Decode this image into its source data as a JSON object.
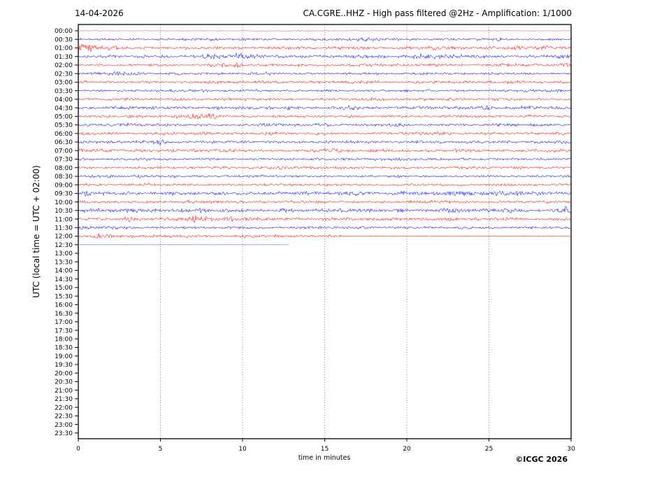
{
  "header": {
    "date": "14-04-2026",
    "title": "CA.CGRE..HHZ - High pass filtered @2Hz - Amplification: 1/1000"
  },
  "footer": {
    "copyright": "©ICGC 2026"
  },
  "colors": {
    "trace_red": "#ff0000",
    "trace_blue": "#0000ff",
    "trace_flat": "#9999ee",
    "grid": "#666666",
    "frame": "#000000"
  },
  "chart_data": {
    "type": "line",
    "subtype": "helicorder-seismogram",
    "date": "14-04-2026",
    "title": "CA.CGRE..HHZ - High pass filtered @2Hz - Amplification: 1/1000",
    "xlabel": "time in minutes",
    "ylabel": "UTC (local time = UTC + 02:00)",
    "xlim": [
      0,
      30
    ],
    "x_ticks": [
      0,
      5,
      10,
      15,
      20,
      25,
      30
    ],
    "grid": "vertical-dotted-at-5-min",
    "row_interval_minutes": 30,
    "minutes_per_row": 30,
    "recording_note": "traces recorded from 00:00 UTC through 12:30 row; 12:30 trace is flat (station quiet/offline) and stops at ~12.8 min; rows 13:00-23:30 empty",
    "event_format": "[center_minute, width_minutes, amplitude_multiplier]",
    "rows": [
      {
        "label": "00:00",
        "color": "red",
        "amp": 0.3,
        "opacity": 0.6,
        "events": []
      },
      {
        "label": "00:30",
        "color": "blue",
        "amp": 0.95,
        "events": [
          [
            16.5,
            1.2,
            1.5
          ]
        ]
      },
      {
        "label": "01:00",
        "color": "red",
        "amp": 1.0,
        "events": [
          [
            0.7,
            0.5,
            2.9
          ],
          [
            1.9,
            0.35,
            1.9
          ],
          [
            21.8,
            0.9,
            1.5
          ],
          [
            27.7,
            0.9,
            1.7
          ]
        ]
      },
      {
        "label": "01:30",
        "color": "blue",
        "amp": 1.1,
        "events": [
          [
            8.7,
            1.0,
            1.7
          ],
          [
            9.9,
            0.5,
            1.9
          ],
          [
            17.3,
            0.7,
            1.5
          ],
          [
            21.5,
            1.3,
            1.6
          ],
          [
            23.3,
            0.9,
            1.6
          ],
          [
            29.5,
            0.5,
            1.8
          ]
        ]
      },
      {
        "label": "02:00",
        "color": "red",
        "amp": 1.0,
        "events": [
          [
            8.8,
            0.6,
            2.3
          ],
          [
            9.5,
            0.35,
            1.8
          ],
          [
            29.8,
            0.25,
            2.6
          ]
        ]
      },
      {
        "label": "02:30",
        "color": "blue",
        "amp": 0.9,
        "events": [
          [
            2.2,
            0.7,
            1.5
          ]
        ]
      },
      {
        "label": "03:00",
        "color": "red",
        "amp": 1.0,
        "events": [
          [
            10.5,
            1.2,
            1.3
          ]
        ]
      },
      {
        "label": "03:30",
        "color": "blue",
        "amp": 0.9,
        "events": []
      },
      {
        "label": "04:00",
        "color": "red",
        "amp": 1.0,
        "events": [
          [
            2.8,
            0.5,
            1.5
          ]
        ]
      },
      {
        "label": "04:30",
        "color": "blue",
        "amp": 1.1,
        "events": [
          [
            12.6,
            0.45,
            1.6
          ],
          [
            16.6,
            0.4,
            1.5
          ],
          [
            21.5,
            0.7,
            1.5
          ],
          [
            25.0,
            0.5,
            1.5
          ],
          [
            27.2,
            0.5,
            1.5
          ]
        ]
      },
      {
        "label": "05:00",
        "color": "red",
        "amp": 1.0,
        "events": [
          [
            5.9,
            0.5,
            1.9
          ],
          [
            7.7,
            0.8,
            2.1
          ]
        ]
      },
      {
        "label": "05:30",
        "color": "blue",
        "amp": 1.0,
        "events": [
          [
            3.5,
            0.9,
            1.4
          ]
        ]
      },
      {
        "label": "06:00",
        "color": "red",
        "amp": 1.0,
        "events": [
          [
            20.8,
            0.9,
            1.4
          ]
        ]
      },
      {
        "label": "06:30",
        "color": "blue",
        "amp": 1.0,
        "events": [
          [
            4.9,
            0.25,
            2.1
          ],
          [
            29.6,
            0.4,
            1.6
          ]
        ]
      },
      {
        "label": "07:00",
        "color": "red",
        "amp": 1.1,
        "events": [
          [
            0.7,
            0.9,
            1.6
          ]
        ]
      },
      {
        "label": "07:30",
        "color": "blue",
        "amp": 0.9,
        "events": []
      },
      {
        "label": "08:00",
        "color": "red",
        "amp": 0.9,
        "events": [
          [
            12.3,
            0.12,
            3.2
          ]
        ]
      },
      {
        "label": "08:30",
        "color": "blue",
        "amp": 0.85,
        "events": [
          [
            3.4,
            0.35,
            1.5
          ]
        ]
      },
      {
        "label": "09:00",
        "color": "red",
        "amp": 0.9,
        "events": [
          [
            1.6,
            0.25,
            1.8
          ],
          [
            4.2,
            0.25,
            1.8
          ]
        ]
      },
      {
        "label": "09:30",
        "color": "blue",
        "amp": 1.1,
        "events": [
          [
            0.5,
            0.35,
            2.1
          ],
          [
            14.2,
            0.5,
            1.6
          ],
          [
            16.8,
            0.7,
            1.6
          ],
          [
            19.6,
            0.6,
            1.8
          ],
          [
            23.4,
            0.9,
            2.0
          ],
          [
            26.0,
            0.45,
            1.8
          ],
          [
            28.0,
            0.9,
            1.5
          ]
        ]
      },
      {
        "label": "10:00",
        "color": "red",
        "amp": 0.9,
        "events": []
      },
      {
        "label": "10:30",
        "color": "blue",
        "amp": 1.1,
        "events": [
          [
            1.5,
            0.7,
            1.5
          ],
          [
            3.5,
            0.45,
            1.5
          ],
          [
            7.3,
            0.35,
            1.9
          ],
          [
            12.5,
            0.5,
            1.5
          ],
          [
            15.5,
            0.5,
            1.5
          ],
          [
            19.7,
            0.5,
            1.8
          ],
          [
            22.6,
            0.45,
            1.9
          ],
          [
            26.5,
            0.5,
            1.5
          ],
          [
            29.7,
            0.35,
            2.0
          ]
        ]
      },
      {
        "label": "11:00",
        "color": "red",
        "amp": 1.0,
        "events": [
          [
            3.1,
            0.28,
            1.8
          ],
          [
            5.0,
            1.0,
            1.4
          ],
          [
            7.4,
            0.55,
            2.7
          ],
          [
            9.3,
            0.28,
            1.8
          ],
          [
            22.8,
            0.25,
            2.3
          ]
        ]
      },
      {
        "label": "11:30",
        "color": "blue",
        "amp": 1.0,
        "events": [
          [
            2.8,
            0.7,
            1.4
          ]
        ]
      },
      {
        "label": "12:00",
        "color": "red",
        "amp": 0.95,
        "events": [
          [
            1.3,
            0.45,
            2.1
          ],
          [
            10.0,
            0.7,
            1.5
          ]
        ],
        "quiet_after": 16,
        "quiet_amp": 0.3
      },
      {
        "label": "12:30",
        "color": "flat",
        "amp": 0.12,
        "opacity": 1,
        "end": 12.8,
        "events": []
      },
      {
        "label": "13:00",
        "trace": false
      },
      {
        "label": "13:30",
        "trace": false
      },
      {
        "label": "14:00",
        "trace": false
      },
      {
        "label": "14:30",
        "trace": false
      },
      {
        "label": "15:00",
        "trace": false
      },
      {
        "label": "15:30",
        "trace": false
      },
      {
        "label": "16:00",
        "trace": false
      },
      {
        "label": "16:30",
        "trace": false
      },
      {
        "label": "17:00",
        "trace": false
      },
      {
        "label": "17:30",
        "trace": false
      },
      {
        "label": "18:00",
        "trace": false
      },
      {
        "label": "18:30",
        "trace": false
      },
      {
        "label": "19:00",
        "trace": false
      },
      {
        "label": "19:30",
        "trace": false
      },
      {
        "label": "20:00",
        "trace": false
      },
      {
        "label": "20:30",
        "trace": false
      },
      {
        "label": "21:00",
        "trace": false
      },
      {
        "label": "21:30",
        "trace": false
      },
      {
        "label": "22:00",
        "trace": false
      },
      {
        "label": "22:30",
        "trace": false
      },
      {
        "label": "23:00",
        "trace": false
      },
      {
        "label": "23:30",
        "trace": false
      }
    ]
  }
}
